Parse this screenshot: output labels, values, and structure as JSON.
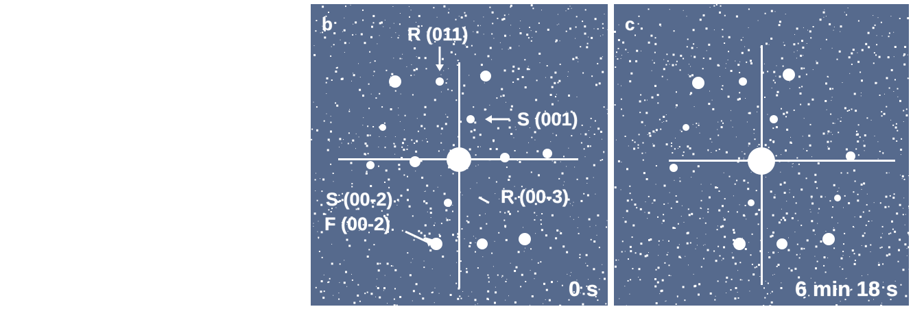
{
  "panels": [
    {
      "letter": "b",
      "annotations": [
        "R (011)",
        "S (001)",
        "S (00-2)",
        "F (00-2)",
        "R (00-3)"
      ],
      "time": "0 s"
    },
    {
      "letter": "c",
      "time": "6 min 18 s"
    }
  ],
  "colors": {
    "background": "#566a8d",
    "spots": "#ffffff"
  }
}
